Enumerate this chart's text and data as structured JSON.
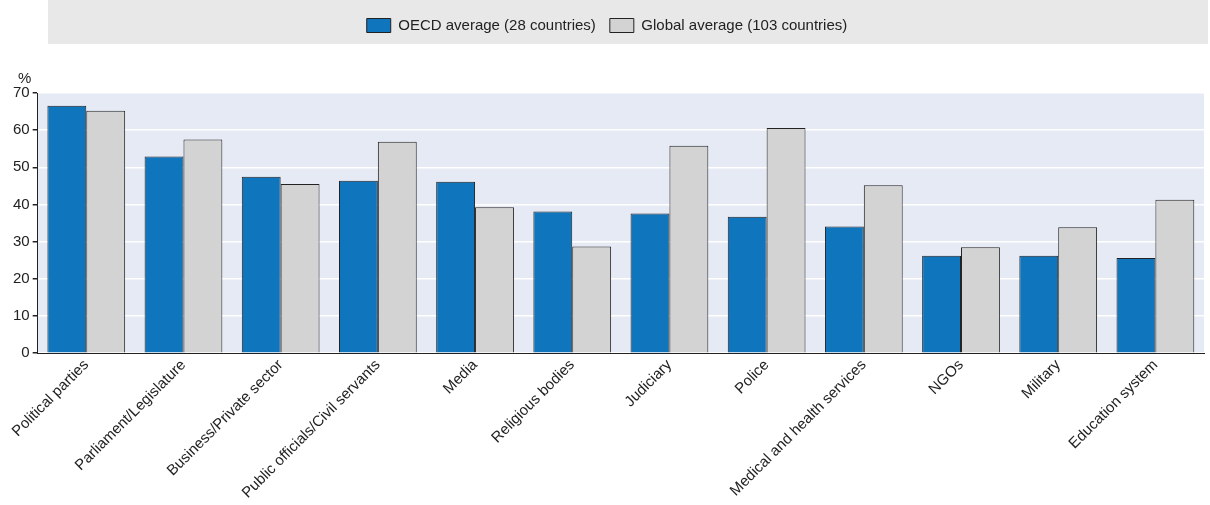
{
  "chart_data": {
    "type": "bar",
    "ylabel": "%",
    "categories": [
      "Political parties",
      "Parliament/Legislature",
      "Business/Private sector",
      "Public officials/Civil servants",
      "Media",
      "Religious bodies",
      "Judiciary",
      "Police",
      "Medical and health services",
      "NGOs",
      "Military",
      "Education system"
    ],
    "series": [
      {
        "name": "OECD average (28 countries)",
        "color": "#0f75bc",
        "values": [
          66.6,
          52.9,
          47.5,
          46.4,
          46.1,
          38.1,
          37.6,
          36.7,
          34.1,
          26.2,
          26.2,
          25.6
        ]
      },
      {
        "name": "Global average (103 countries)",
        "color": "#d3d3d3",
        "values": [
          65.2,
          57.5,
          45.5,
          56.9,
          39.3,
          28.7,
          55.8,
          60.6,
          45.2,
          28.5,
          33.9,
          41.3
        ]
      }
    ],
    "ylim": [
      0,
      70
    ],
    "yticks": [
      0,
      10,
      20,
      30,
      40,
      50,
      60,
      70
    ],
    "grid": "y",
    "legend": "top"
  }
}
